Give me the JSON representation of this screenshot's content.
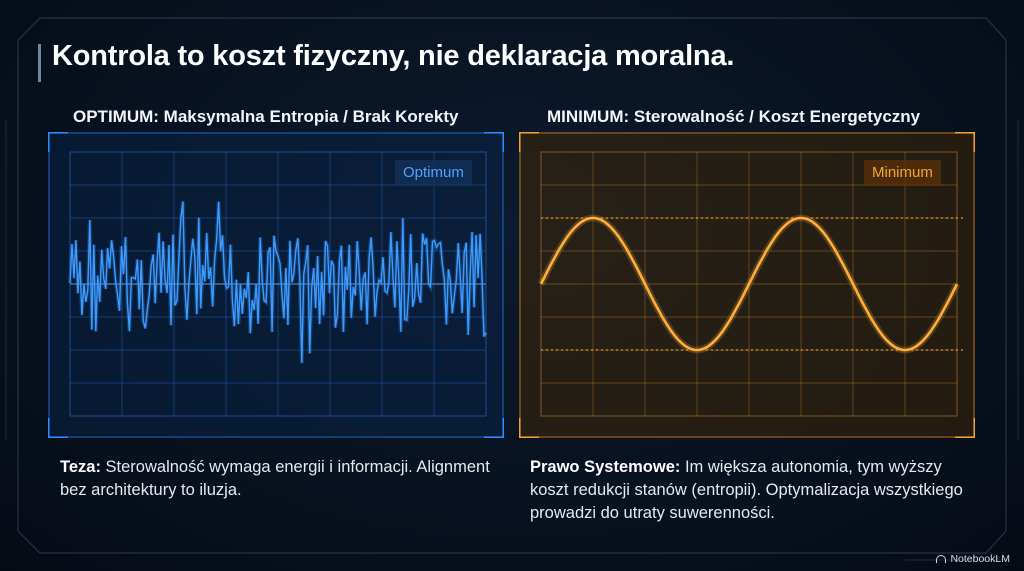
{
  "title": "Kontrola to koszt fizyczny, nie deklaracja moralna.",
  "left": {
    "heading": "OPTIMUM: Maksymalna Entropia / Brak Korekty",
    "badge": "Optimum",
    "color": "#2f8cff",
    "signal": "noise",
    "body_bold": "Teza:",
    "body_text": " Sterowalność wymaga energii i informacji. Alignment bez architektury to iluzja."
  },
  "right": {
    "heading": "MINIMUM: Sterowalność / Koszt Energetyczny",
    "badge": "Minimum",
    "color": "#f5a030",
    "signal": "sine",
    "cycles": 2,
    "body_bold": "Prawo Systemowe:",
    "body_text": " Im większa autonomia, tym wyższy koszt redukcji stanów (entropii). Optymalizacja wszystkiego prowadzi do utraty suwerenności."
  },
  "brand": "NotebookLM"
}
